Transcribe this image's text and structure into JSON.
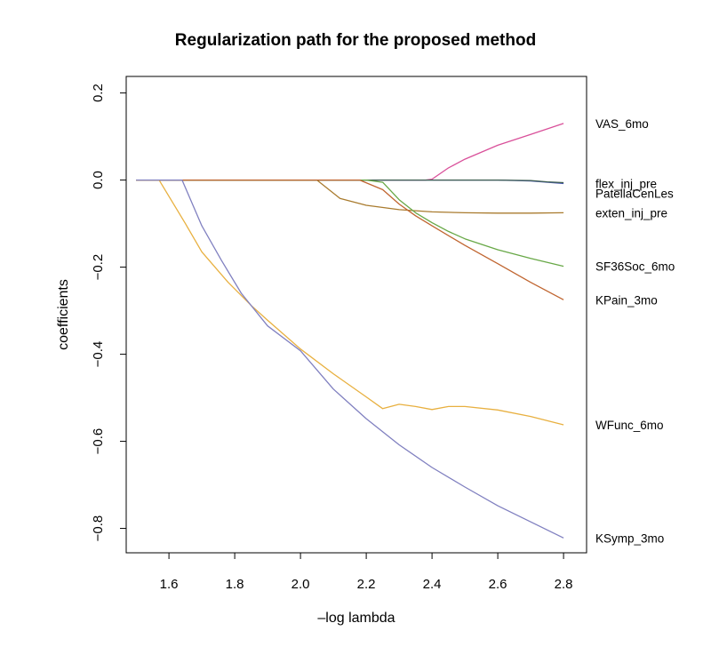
{
  "chart_data": {
    "type": "line",
    "title": "Regularization path for the proposed method",
    "xlabel": "–log lambda",
    "ylabel": "coefficients",
    "xlim": [
      1.47,
      2.87
    ],
    "ylim": [
      -0.856,
      0.238
    ],
    "xticks": [
      "1.6",
      "1.8",
      "2.0",
      "2.2",
      "2.4",
      "2.6",
      "2.8"
    ],
    "yticks": [
      "0.2",
      "0.0",
      "−0.2",
      "−0.4",
      "−0.6",
      "−0.8"
    ],
    "grid": false,
    "legend": "right-margin labels",
    "series": [
      {
        "name": "VAS_6mo",
        "color": "#d9509a",
        "x": [
          1.5,
          2.38,
          2.4,
          2.45,
          2.5,
          2.6,
          2.7,
          2.8
        ],
        "y": [
          0.0,
          0.0,
          0.002,
          0.028,
          0.048,
          0.08,
          0.105,
          0.13
        ]
      },
      {
        "name": "flex_inj_pre",
        "color": "#4a5ab0",
        "x": [
          1.5,
          2.4,
          2.6,
          2.7,
          2.8
        ],
        "y": [
          0.0,
          0.0,
          0.0,
          -0.002,
          -0.008
        ]
      },
      {
        "name": "PatellaCenLes",
        "color": "#3e5e50",
        "x": [
          1.5,
          2.6,
          2.7,
          2.75,
          2.8
        ],
        "y": [
          0.0,
          0.0,
          -0.001,
          -0.004,
          -0.006
        ]
      },
      {
        "name": "exten_inj_pre",
        "color": "#a97b2e",
        "x": [
          1.5,
          2.05,
          2.12,
          2.2,
          2.3,
          2.4,
          2.5,
          2.6,
          2.7,
          2.8
        ],
        "y": [
          0.0,
          0.0,
          -0.042,
          -0.058,
          -0.068,
          -0.073,
          -0.075,
          -0.076,
          -0.076,
          -0.075
        ]
      },
      {
        "name": "SF36Soc_6mo",
        "color": "#68a847",
        "x": [
          1.5,
          2.2,
          2.25,
          2.3,
          2.35,
          2.4,
          2.45,
          2.5,
          2.6,
          2.7,
          2.8
        ],
        "y": [
          0.0,
          0.0,
          -0.005,
          -0.045,
          -0.075,
          -0.098,
          -0.118,
          -0.135,
          -0.16,
          -0.18,
          -0.198
        ]
      },
      {
        "name": "KPain_3mo",
        "color": "#c06530",
        "x": [
          1.5,
          2.18,
          2.25,
          2.3,
          2.35,
          2.4,
          2.5,
          2.6,
          2.7,
          2.8
        ],
        "y": [
          0.0,
          0.0,
          -0.022,
          -0.055,
          -0.082,
          -0.105,
          -0.15,
          -0.192,
          -0.235,
          -0.275
        ]
      },
      {
        "name": "WFunc_6mo",
        "color": "#e8b040",
        "x": [
          1.5,
          1.57,
          1.65,
          1.7,
          1.78,
          1.85,
          1.9,
          2.0,
          2.1,
          2.2,
          2.25,
          2.3,
          2.35,
          2.4,
          2.45,
          2.5,
          2.6,
          2.7,
          2.8
        ],
        "y": [
          0.0,
          0.0,
          -0.1,
          -0.165,
          -0.235,
          -0.288,
          -0.322,
          -0.388,
          -0.445,
          -0.498,
          -0.525,
          -0.515,
          -0.52,
          -0.527,
          -0.52,
          -0.52,
          -0.528,
          -0.543,
          -0.562
        ]
      },
      {
        "name": "KSymp_3mo",
        "color": "#8080c0",
        "x": [
          1.5,
          1.64,
          1.7,
          1.76,
          1.82,
          1.9,
          2.0,
          2.1,
          2.2,
          2.3,
          2.4,
          2.5,
          2.6,
          2.7,
          2.8
        ],
        "y": [
          0.0,
          0.0,
          -0.105,
          -0.185,
          -0.26,
          -0.335,
          -0.392,
          -0.48,
          -0.548,
          -0.608,
          -0.66,
          -0.705,
          -0.748,
          -0.785,
          -0.822
        ]
      }
    ]
  }
}
